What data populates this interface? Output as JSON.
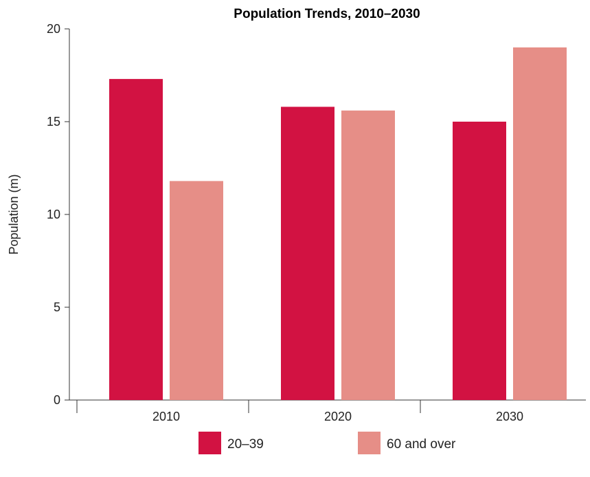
{
  "chart_data": {
    "type": "bar",
    "title": "Population Trends, 2010–2030",
    "xlabel": "",
    "ylabel": "Population (m)",
    "categories": [
      "2010",
      "2020",
      "2030"
    ],
    "series": [
      {
        "name": "20–39",
        "values": [
          17.3,
          15.8,
          15.0
        ],
        "color": "#D21242"
      },
      {
        "name": "60 and over",
        "values": [
          11.8,
          15.6,
          19.0
        ],
        "color": "#E68E87"
      }
    ],
    "ylim": [
      0,
      20
    ],
    "yticks": [
      0,
      5,
      10,
      15,
      20
    ],
    "grid": false,
    "legend_position": "bottom"
  }
}
